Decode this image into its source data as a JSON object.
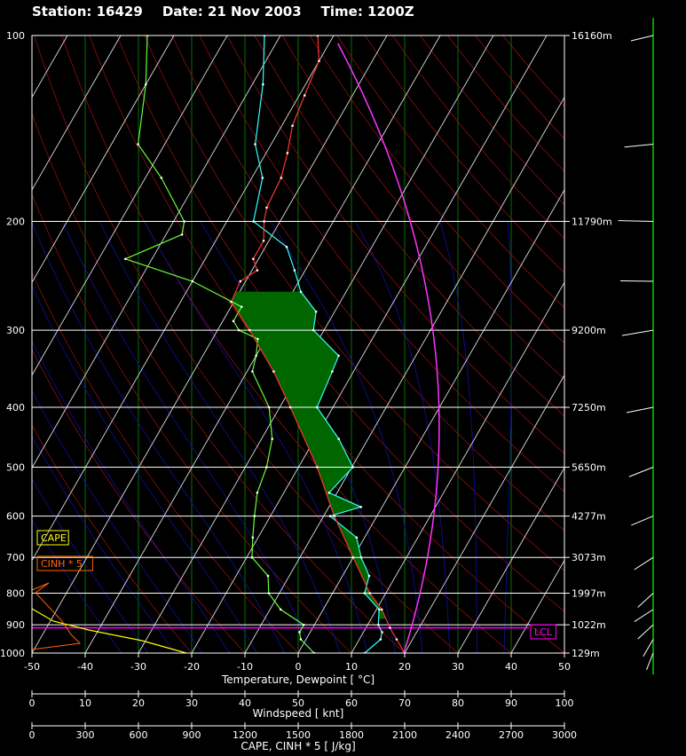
{
  "header": {
    "station": "Station: 16429",
    "date": "Date: 21 Nov 2003",
    "time": "Time: 1200Z"
  },
  "legend": {
    "cape": "CAPE",
    "cinh": "CINH * 5",
    "lcl": "LCL",
    "cape_color": "#ffff00",
    "cinh_color": "#ff6600",
    "lcl_color": "#ff00ff"
  },
  "chart_data": {
    "type": "line",
    "subtype": "skew-T log-P",
    "xlabel": "Temperature, Dewpoint  [ °C]",
    "x_ticks": [
      "-50",
      "-40",
      "-30",
      "-20",
      "-10",
      "0",
      "10",
      "20",
      "30",
      "40",
      "50"
    ],
    "xlim": [
      -50,
      50
    ],
    "y_scale": "log",
    "ylim": [
      1000,
      100
    ],
    "pressure_ticks": [
      "100",
      "200",
      "300",
      "400",
      "500",
      "600",
      "700",
      "800",
      "900",
      "1000"
    ],
    "height_labels": [
      {
        "p": 100,
        "label": "16160m"
      },
      {
        "p": 200,
        "label": "11790m"
      },
      {
        "p": 300,
        "label": "9200m"
      },
      {
        "p": 400,
        "label": "7250m"
      },
      {
        "p": 500,
        "label": "5650m"
      },
      {
        "p": 600,
        "label": "4277m"
      },
      {
        "p": 700,
        "label": "3073m"
      },
      {
        "p": 800,
        "label": "1997m"
      },
      {
        "p": 900,
        "label": "1022m"
      },
      {
        "p": 1000,
        "label": "129m"
      }
    ],
    "windspeed_axis": {
      "label": "Windspeed  [ knt]",
      "ticks": [
        "0",
        "10",
        "20",
        "30",
        "40",
        "50",
        "60",
        "70",
        "80",
        "90",
        "100"
      ],
      "range": [
        0,
        100
      ]
    },
    "cape_axis": {
      "label": "CAPE, CINH * 5  [ J/kg]",
      "ticks": [
        "0",
        "300",
        "600",
        "900",
        "1200",
        "1500",
        "1800",
        "2100",
        "2400",
        "2700",
        "3000"
      ],
      "range": [
        0,
        3000
      ]
    },
    "lcl_pressure": 910,
    "grid": true,
    "series": [
      {
        "key": "temperature",
        "color": "#33ffff",
        "points": [
          [
            1013,
            12
          ],
          [
            1000,
            12.5
          ],
          [
            950,
            14
          ],
          [
            925,
            13.5
          ],
          [
            900,
            12
          ],
          [
            850,
            10.5
          ],
          [
            800,
            6
          ],
          [
            750,
            5
          ],
          [
            700,
            1.5
          ],
          [
            650,
            -1.5
          ],
          [
            600,
            -8.8
          ],
          [
            580,
            -4
          ],
          [
            550,
            -11.5
          ],
          [
            500,
            -9.8
          ],
          [
            450,
            -15.5
          ],
          [
            400,
            -23
          ],
          [
            350,
            -24
          ],
          [
            330,
            -24.5
          ],
          [
            300,
            -32
          ],
          [
            280,
            -33.5
          ],
          [
            260,
            -38.5
          ],
          [
            240,
            -42
          ],
          [
            220,
            -46
          ],
          [
            200,
            -55
          ],
          [
            170,
            -58
          ],
          [
            150,
            -63
          ],
          [
            120,
            -68
          ],
          [
            100,
            -73
          ]
        ]
      },
      {
        "key": "dewpoint",
        "color": "#66ff33",
        "points": [
          [
            1013,
            4
          ],
          [
            1000,
            3
          ],
          [
            950,
            -1
          ],
          [
            925,
            -2
          ],
          [
            900,
            -2
          ],
          [
            850,
            -8
          ],
          [
            800,
            -12
          ],
          [
            750,
            -14
          ],
          [
            700,
            -19
          ],
          [
            650,
            -21
          ],
          [
            600,
            -23
          ],
          [
            550,
            -25
          ],
          [
            500,
            -26
          ],
          [
            450,
            -28
          ],
          [
            400,
            -32
          ],
          [
            350,
            -39
          ],
          [
            330,
            -40
          ],
          [
            310,
            -41.5
          ],
          [
            300,
            -46
          ],
          [
            290,
            -48
          ],
          [
            275,
            -48
          ],
          [
            250,
            -60
          ],
          [
            230,
            -75
          ],
          [
            210,
            -67
          ],
          [
            200,
            -68
          ],
          [
            170,
            -77
          ],
          [
            150,
            -85
          ],
          [
            120,
            -90
          ],
          [
            100,
            -95
          ]
        ]
      },
      {
        "key": "parcel",
        "color": "#ff3333",
        "points": [
          [
            1013,
            21
          ],
          [
            1000,
            20
          ],
          [
            950,
            17
          ],
          [
            910,
            14.5
          ],
          [
            850,
            11
          ],
          [
            800,
            7
          ],
          [
            700,
            0
          ],
          [
            600,
            -8
          ],
          [
            500,
            -16.5
          ],
          [
            400,
            -28
          ],
          [
            350,
            -35
          ],
          [
            300,
            -44
          ],
          [
            270,
            -50.5
          ],
          [
            250,
            -51
          ],
          [
            240,
            -49
          ],
          [
            230,
            -51
          ],
          [
            215,
            -51
          ],
          [
            200,
            -53
          ],
          [
            190,
            -54
          ],
          [
            170,
            -54.5
          ],
          [
            155,
            -56
          ],
          [
            140,
            -58
          ],
          [
            125,
            -59
          ],
          [
            110,
            -60
          ],
          [
            100,
            -63
          ]
        ]
      }
    ],
    "wind_profile": [
      {
        "p": 1000,
        "speed_kt": 10,
        "dir_deg": 330
      },
      {
        "p": 950,
        "speed_kt": 15,
        "dir_deg": 320
      },
      {
        "p": 900,
        "speed_kt": 20,
        "dir_deg": 300
      },
      {
        "p": 850,
        "speed_kt": 25,
        "dir_deg": 290
      },
      {
        "p": 800,
        "speed_kt": 20,
        "dir_deg": 300
      },
      {
        "p": 700,
        "speed_kt": 25,
        "dir_deg": 290
      },
      {
        "p": 600,
        "speed_kt": 30,
        "dir_deg": 280
      },
      {
        "p": 500,
        "speed_kt": 35,
        "dir_deg": 280
      },
      {
        "p": 400,
        "speed_kt": 40,
        "dir_deg": 270
      },
      {
        "p": 300,
        "speed_kt": 50,
        "dir_deg": 270
      },
      {
        "p": 250,
        "speed_kt": 55,
        "dir_deg": 260
      },
      {
        "p": 200,
        "speed_kt": 60,
        "dir_deg": 260
      },
      {
        "p": 150,
        "speed_kt": 45,
        "dir_deg": 265
      },
      {
        "p": 100,
        "speed_kt": 30,
        "dir_deg": 270
      }
    ]
  }
}
